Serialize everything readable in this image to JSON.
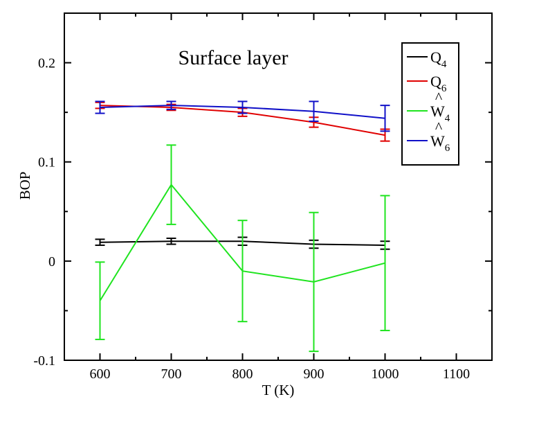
{
  "chart_data": {
    "type": "line",
    "title": "Surface layer",
    "xlabel": "T (K)",
    "ylabel": "BOP",
    "xlim": [
      550,
      1150
    ],
    "ylim": [
      -0.1,
      0.25
    ],
    "x_ticks": [
      600,
      700,
      800,
      900,
      1000,
      1100
    ],
    "y_ticks": [
      -0.1,
      0,
      0.1,
      0.2
    ],
    "x_tick_labels": [
      "600",
      "700",
      "800",
      "900",
      "1000",
      "1100"
    ],
    "y_tick_labels": [
      "-0.1",
      "0",
      "0.1",
      "0.2"
    ],
    "grid": false,
    "legend_position": "top-right",
    "series": [
      {
        "name": "Q4",
        "legend_main": "Q",
        "legend_sub": "4",
        "legend_hat": false,
        "color": "#000000",
        "x": [
          600,
          700,
          800,
          900,
          1000
        ],
        "y": [
          0.019,
          0.02,
          0.02,
          0.017,
          0.016
        ],
        "err": [
          0.003,
          0.003,
          0.004,
          0.004,
          0.004
        ]
      },
      {
        "name": "Q6",
        "legend_main": "Q",
        "legend_sub": "6",
        "legend_hat": false,
        "color": "#e00000",
        "x": [
          600,
          700,
          800,
          900,
          1000
        ],
        "y": [
          0.157,
          0.155,
          0.15,
          0.14,
          0.127
        ],
        "err": [
          0.003,
          0.003,
          0.004,
          0.005,
          0.006
        ]
      },
      {
        "name": "W4",
        "legend_main": "W",
        "legend_sub": "4",
        "legend_hat": true,
        "color": "#1fe41f",
        "x": [
          600,
          700,
          800,
          900,
          1000
        ],
        "y": [
          -0.04,
          0.077,
          -0.01,
          -0.021,
          -0.002
        ],
        "err": [
          0.039,
          0.04,
          0.051,
          0.07,
          0.068
        ]
      },
      {
        "name": "W6",
        "legend_main": "W",
        "legend_sub": "6",
        "legend_hat": true,
        "color": "#1010c8",
        "x": [
          600,
          700,
          800,
          900,
          1000
        ],
        "y": [
          0.155,
          0.157,
          0.155,
          0.151,
          0.144
        ],
        "err": [
          0.006,
          0.004,
          0.006,
          0.01,
          0.013
        ]
      }
    ],
    "hat_symbol": "^"
  }
}
